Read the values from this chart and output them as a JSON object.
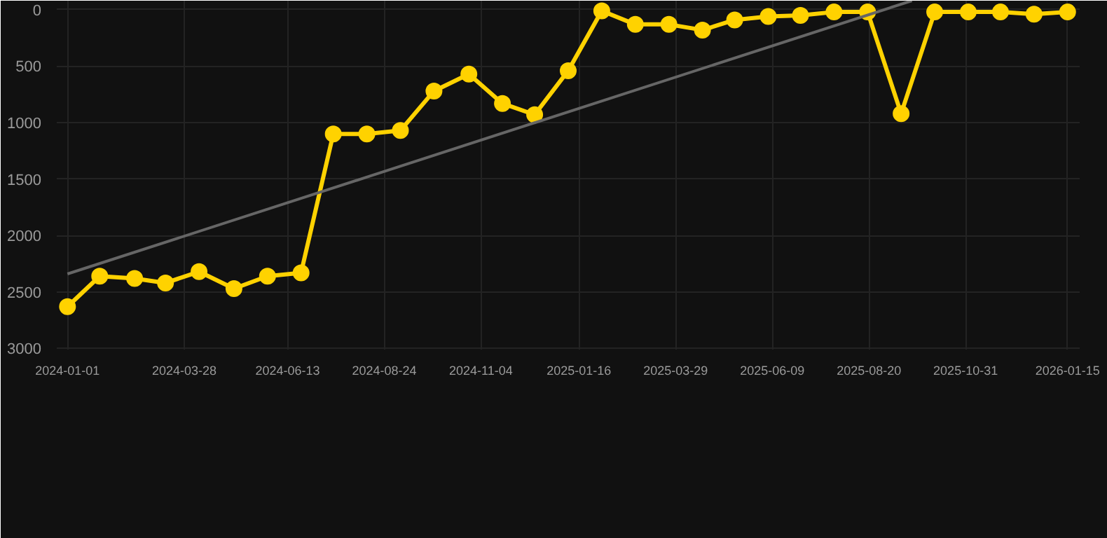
{
  "chart_data": {
    "type": "line",
    "x": [
      "2024-01-01",
      "2024-01-25",
      "2024-02-20",
      "2024-03-14",
      "2024-04-08",
      "2024-05-04",
      "2024-05-29",
      "2024-06-23",
      "2024-07-17",
      "2024-08-11",
      "2024-09-05",
      "2024-09-30",
      "2024-10-26",
      "2024-11-20",
      "2024-12-14",
      "2025-01-08",
      "2025-02-02",
      "2025-02-27",
      "2025-03-24",
      "2025-04-18",
      "2025-05-12",
      "2025-06-06",
      "2025-06-30",
      "2025-07-25",
      "2025-08-19",
      "2025-09-13",
      "2025-10-08",
      "2025-11-02",
      "2025-11-26",
      "2025-12-21",
      "2026-01-15"
    ],
    "series": [
      {
        "color": "#ffd200",
        "marker": "circle",
        "values": [
          2630,
          2360,
          2380,
          2420,
          2320,
          2470,
          2360,
          2330,
          1100,
          1100,
          1070,
          720,
          570,
          830,
          930,
          540,
          10,
          130,
          130,
          180,
          90,
          60,
          50,
          20,
          20,
          920,
          20,
          20,
          20,
          40,
          20
        ]
      },
      {
        "type": "line",
        "color": "#666666",
        "marker": "none",
        "x": [
          "2024-01-01",
          "2025-09-21"
        ],
        "values": [
          2340,
          -80
        ]
      }
    ],
    "xlim": [
      "2023-12-24",
      "2026-01-24"
    ],
    "xticks": [
      "2024-01-01",
      "2024-03-28",
      "2024-06-13",
      "2024-08-24",
      "2024-11-04",
      "2025-01-16",
      "2025-03-29",
      "2025-06-09",
      "2025-08-20",
      "2025-10-31",
      "2026-01-15"
    ],
    "ylim": [
      3010,
      -80
    ],
    "yticks": [
      0,
      500,
      1000,
      1500,
      2000,
      2500,
      3000
    ],
    "grid": true
  }
}
